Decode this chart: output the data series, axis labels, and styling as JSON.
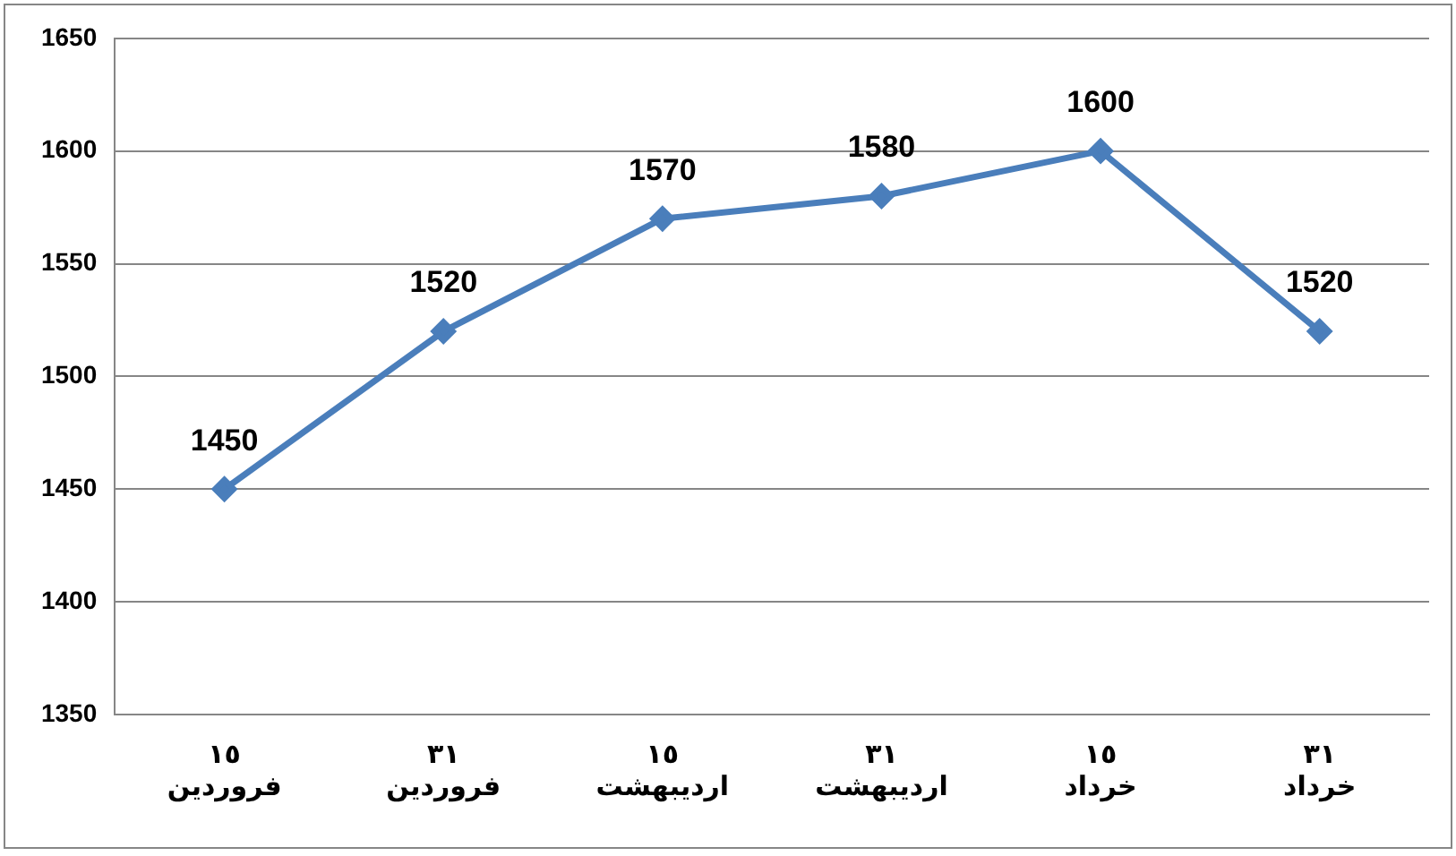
{
  "chart_data": {
    "type": "line",
    "categories": [
      "١٥\nفروردین",
      "٣١\nفروردین",
      "١٥\nاردیبهشت",
      "٣١\nاردیبهشت",
      "١٥\nخرداد",
      "٣١\nخرداد"
    ],
    "series": [
      {
        "color": "#4a7ebb",
        "values": [
          1450,
          1520,
          1570,
          1580,
          1600,
          1520
        ]
      }
    ],
    "ylim": [
      1350,
      1650
    ],
    "yticks": [
      1350,
      1400,
      1450,
      1500,
      1550,
      1600,
      1650
    ],
    "grid": "y",
    "legend": false,
    "marker": "diamond",
    "line_style": "solid",
    "data_labels": true
  }
}
